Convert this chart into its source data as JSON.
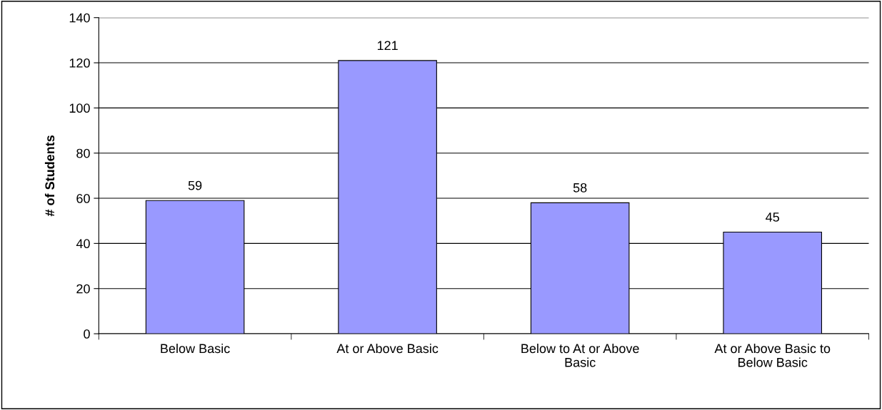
{
  "chart_data": {
    "type": "bar",
    "ylabel": "# of Students",
    "categories": [
      "Below Basic",
      "At or Above Basic",
      "Below to At or Above\nBasic",
      "At or Above Basic to\nBelow Basic"
    ],
    "values": [
      59,
      121,
      58,
      45
    ],
    "color": "#9999ff",
    "ylim": [
      0,
      140
    ],
    "yticks": [
      0,
      20,
      40,
      60,
      80,
      100,
      120,
      140
    ],
    "grid": "y",
    "data_labels": true
  }
}
